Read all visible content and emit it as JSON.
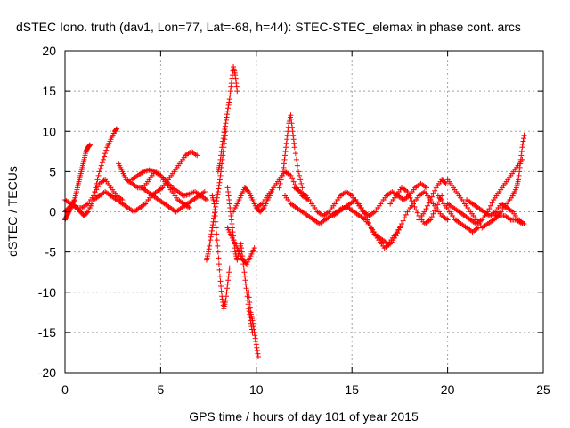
{
  "chart_data": {
    "type": "scatter",
    "title": "dSTEC Iono. truth (dav1, Lon=77, Lat=-68, h=44): STEC-STEC_elemax in phase cont. arcs",
    "xlabel": "GPS time / hours of day 101 of year 2015",
    "ylabel": "dSTEC  / TECUs",
    "xlim": [
      0,
      25
    ],
    "ylim": [
      -20,
      20
    ],
    "xticks": [
      0,
      5,
      10,
      15,
      20,
      25
    ],
    "yticks": [
      -20,
      -15,
      -10,
      -5,
      0,
      5,
      10,
      15,
      20
    ],
    "xtick_labels": [
      "0",
      "5",
      "10",
      "15",
      "20",
      "25"
    ],
    "ytick_labels": [
      "-20",
      "-15",
      "-10",
      "-5",
      "0",
      "5",
      "10",
      "15",
      "20"
    ],
    "grid": true,
    "marker": "+",
    "color": "#ff0000",
    "series": [
      {
        "x": [
          0.0,
          0.1,
          0.2,
          0.3,
          0.4,
          0.5,
          0.6,
          0.7,
          0.8,
          0.9,
          1.0,
          1.1,
          1.2,
          1.3
        ],
        "y": [
          -1.0,
          -0.5,
          0.0,
          0.5,
          1.0,
          1.5,
          2.5,
          3.5,
          4.5,
          5.5,
          6.5,
          7.5,
          8.0,
          8.3
        ]
      },
      {
        "x": [
          0.0,
          0.2,
          0.4,
          0.6,
          0.8,
          1.0,
          1.2,
          1.4,
          1.6,
          1.8,
          2.0,
          2.2,
          2.4,
          2.6,
          2.7
        ],
        "y": [
          0.0,
          0.5,
          1.0,
          0.5,
          0.0,
          -0.5,
          0.0,
          1.0,
          3.0,
          5.0,
          6.5,
          8.0,
          9.0,
          10.0,
          10.3
        ]
      },
      {
        "x": [
          0.0,
          0.3,
          0.6,
          0.9,
          1.2,
          1.5,
          1.8,
          2.1,
          2.4,
          2.7,
          3.0
        ],
        "y": [
          1.5,
          1.0,
          0.5,
          0.5,
          1.0,
          2.0,
          3.5,
          4.0,
          3.0,
          2.0,
          1.5
        ]
      },
      {
        "x": [
          1.5,
          1.8,
          2.1,
          2.4,
          2.7,
          3.0,
          3.3,
          3.6,
          3.9,
          4.2,
          4.5,
          4.8,
          5.1,
          5.4,
          5.7,
          6.0,
          6.3,
          6.6,
          6.9
        ],
        "y": [
          1.5,
          2.0,
          2.5,
          2.0,
          1.5,
          1.0,
          0.5,
          0.0,
          0.5,
          1.0,
          2.0,
          2.5,
          3.0,
          4.0,
          5.0,
          6.0,
          7.0,
          7.5,
          7.0
        ]
      },
      {
        "x": [
          2.8,
          3.0,
          3.2,
          3.5,
          3.8,
          4.1,
          4.4,
          4.7,
          5.0,
          5.3,
          5.6,
          5.9,
          6.2,
          6.5
        ],
        "y": [
          6.0,
          5.0,
          4.0,
          3.5,
          3.0,
          3.0,
          4.0,
          5.0,
          4.5,
          3.5,
          2.5,
          1.5,
          1.0,
          0.5
        ]
      },
      {
        "x": [
          3.5,
          3.8,
          4.1,
          4.4,
          4.7,
          5.0,
          5.3,
          5.6,
          5.9,
          6.2,
          6.5,
          6.8,
          7.1,
          7.4
        ],
        "y": [
          4.0,
          4.5,
          5.0,
          5.2,
          5.0,
          4.5,
          3.8,
          3.0,
          2.5,
          2.0,
          2.2,
          2.5,
          2.0,
          1.5
        ]
      },
      {
        "x": [
          4.0,
          4.3,
          4.6,
          4.9,
          5.2,
          5.5,
          5.8,
          6.1,
          6.4,
          6.7,
          7.0,
          7.3
        ],
        "y": [
          3.0,
          2.5,
          2.0,
          1.5,
          1.0,
          0.5,
          0.0,
          0.5,
          1.0,
          1.5,
          2.0,
          2.5
        ]
      },
      {
        "x": [
          7.4,
          7.5,
          7.6,
          7.7,
          7.8,
          7.9,
          8.0,
          8.1,
          8.2,
          8.3,
          8.4
        ],
        "y": [
          -6.0,
          -5.0,
          -3.5,
          -2.0,
          -0.5,
          1.0,
          2.5,
          4.0,
          6.0,
          8.0,
          10.0
        ]
      },
      {
        "x": [
          7.7,
          7.8,
          7.9,
          8.0,
          8.1,
          8.2,
          8.3,
          8.4,
          8.5,
          8.6
        ],
        "y": [
          2.0,
          1.0,
          -2.0,
          -5.0,
          -8.0,
          -10.5,
          -12.0,
          -11.0,
          -9.0,
          -7.0
        ]
      },
      {
        "x": [
          8.0,
          8.1,
          8.2,
          8.3,
          8.4,
          8.5,
          8.6,
          8.7,
          8.8,
          8.9,
          9.0
        ],
        "y": [
          5.0,
          6.0,
          8.0,
          9.5,
          11.0,
          12.5,
          14.0,
          16.0,
          18.0,
          17.0,
          15.0
        ]
      },
      {
        "x": [
          8.5,
          8.6,
          8.7,
          8.8,
          8.9,
          9.0,
          9.1,
          9.2,
          9.3,
          9.4,
          9.5,
          9.6,
          9.7,
          9.8
        ],
        "y": [
          3.0,
          1.0,
          -1.0,
          -3.0,
          -5.0,
          -6.0,
          -5.0,
          -4.0,
          -6.0,
          -8.0,
          -10.0,
          -12.0,
          -13.5,
          -15.0
        ]
      },
      {
        "x": [
          9.6,
          9.7,
          9.8,
          9.9,
          10.0,
          10.1
        ],
        "y": [
          -10.0,
          -12.5,
          -13.5,
          -15.0,
          -16.5,
          -18.0
        ]
      },
      {
        "x": [
          8.8,
          9.0,
          9.2,
          9.4,
          9.6,
          9.8,
          10.0,
          10.2,
          10.4,
          10.6,
          10.8
        ],
        "y": [
          0.0,
          1.0,
          2.0,
          3.0,
          2.5,
          1.5,
          0.5,
          0.0,
          0.5,
          1.5,
          2.5
        ]
      },
      {
        "x": [
          8.5,
          8.7,
          8.9,
          9.1,
          9.3,
          9.5,
          9.7,
          9.9
        ],
        "y": [
          -2.0,
          -3.0,
          -4.0,
          -5.0,
          -6.0,
          -6.5,
          -5.5,
          -4.5
        ]
      },
      {
        "x": [
          10.0,
          10.3,
          10.6,
          10.9,
          11.2,
          11.5,
          11.8,
          12.1,
          12.4,
          12.7
        ],
        "y": [
          0.5,
          1.0,
          2.0,
          3.0,
          4.0,
          5.0,
          4.5,
          3.0,
          2.0,
          1.5
        ]
      },
      {
        "x": [
          11.2,
          11.4,
          11.5,
          11.6,
          11.7,
          11.8,
          11.9,
          12.0,
          12.2,
          12.4
        ],
        "y": [
          3.0,
          5.0,
          7.0,
          9.0,
          11.0,
          12.0,
          10.0,
          8.0,
          5.0,
          3.0
        ]
      },
      {
        "x": [
          11.5,
          11.8,
          12.1,
          12.4,
          12.7,
          13.0,
          13.3,
          13.6,
          13.9,
          14.2,
          14.5,
          14.8,
          15.1,
          15.4,
          15.7,
          16.0,
          16.3,
          16.6,
          16.9,
          17.2,
          17.5
        ],
        "y": [
          2.0,
          1.0,
          0.5,
          0.0,
          -0.5,
          -1.0,
          -1.5,
          -1.0,
          -0.5,
          0.0,
          0.5,
          0.5,
          0.0,
          -0.5,
          -1.0,
          -2.0,
          -3.0,
          -3.5,
          -4.0,
          -3.0,
          -2.0
        ]
      },
      {
        "x": [
          12.0,
          12.3,
          12.6,
          12.9,
          13.2,
          13.5,
          13.8,
          14.1,
          14.4,
          14.7,
          15.0,
          15.3,
          15.6,
          15.9,
          16.2,
          16.5,
          16.8,
          17.1,
          17.4,
          17.7,
          18.0,
          18.3,
          18.6,
          18.9
        ],
        "y": [
          3.0,
          2.5,
          2.0,
          1.0,
          0.0,
          -0.5,
          0.0,
          1.0,
          2.0,
          2.5,
          2.0,
          1.0,
          0.0,
          -0.5,
          0.0,
          1.0,
          2.0,
          2.5,
          2.0,
          1.5,
          2.0,
          3.0,
          3.5,
          3.0
        ]
      },
      {
        "x": [
          14.0,
          14.3,
          14.6,
          14.9,
          15.2,
          15.5,
          15.8,
          16.1,
          16.4,
          16.7,
          17.0,
          17.3,
          17.6,
          17.9,
          18.2,
          18.5,
          18.8,
          19.1,
          19.4,
          19.7,
          20.0
        ],
        "y": [
          -0.5,
          0.0,
          0.5,
          1.0,
          1.5,
          0.5,
          -1.0,
          -2.5,
          -3.5,
          -4.5,
          -4.0,
          -3.0,
          -1.5,
          0.0,
          1.0,
          2.0,
          2.5,
          1.5,
          0.5,
          -0.5,
          -1.0
        ]
      },
      {
        "x": [
          17.0,
          17.3,
          17.6,
          17.9,
          18.2,
          18.5,
          18.8,
          19.1,
          19.4,
          19.7
        ],
        "y": [
          1.0,
          2.0,
          3.0,
          2.5,
          1.0,
          -0.5,
          -1.5,
          -1.0,
          0.5,
          2.0
        ]
      },
      {
        "x": [
          18.5,
          18.8,
          19.1,
          19.4,
          19.7,
          19.9
        ],
        "y": [
          -1.0,
          0.0,
          1.5,
          3.0,
          4.0,
          3.5
        ]
      },
      {
        "x": [
          20.0,
          20.3,
          20.6,
          20.9,
          21.2,
          21.5,
          21.8,
          22.1,
          22.4,
          22.7,
          23.0,
          23.3,
          23.6,
          23.9
        ],
        "y": [
          4.0,
          3.0,
          2.0,
          1.0,
          0.0,
          -1.0,
          -2.0,
          -1.5,
          -1.0,
          -0.5,
          -0.5,
          -1.0,
          -1.0,
          -1.5
        ]
      },
      {
        "x": [
          20.0,
          20.3,
          20.6,
          20.9,
          21.2,
          21.5,
          21.8,
          22.1,
          22.4,
          22.7,
          23.0,
          23.3,
          23.6,
          23.9
        ],
        "y": [
          1.0,
          0.5,
          0.0,
          -0.5,
          -1.0,
          -1.5,
          -1.0,
          0.0,
          1.5,
          2.5,
          3.5,
          4.5,
          5.5,
          6.5
        ]
      },
      {
        "x": [
          22.5,
          22.8,
          23.1,
          23.4,
          23.6,
          23.7,
          23.8,
          23.9,
          24.0
        ],
        "y": [
          -0.5,
          0.0,
          1.0,
          2.0,
          3.0,
          4.0,
          6.0,
          8.0,
          9.5
        ]
      },
      {
        "x": [
          21.0,
          21.3,
          21.6,
          21.9,
          22.2,
          22.5,
          22.8,
          23.1,
          23.4,
          23.7,
          24.0
        ],
        "y": [
          1.5,
          1.0,
          0.5,
          0.0,
          -0.5,
          0.0,
          1.0,
          0.5,
          0.0,
          -1.0,
          -1.5
        ]
      },
      {
        "x": [
          19.5,
          19.8,
          20.1,
          20.4,
          20.7,
          21.0,
          21.3,
          21.6
        ],
        "y": [
          2.0,
          1.0,
          0.0,
          -1.0,
          -1.5,
          -2.0,
          -2.5,
          -2.0
        ]
      }
    ]
  }
}
